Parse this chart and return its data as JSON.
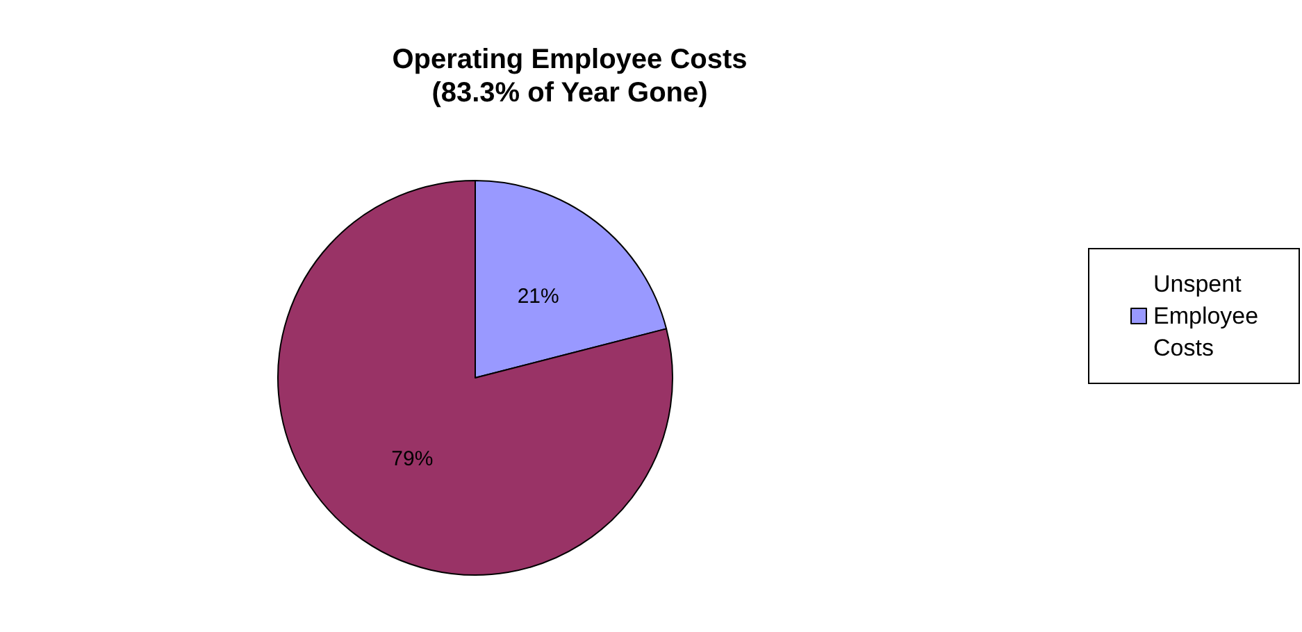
{
  "chart_data": {
    "type": "pie",
    "title": "Operating Employee Costs",
    "subtitle": "(83.3% of Year Gone)",
    "categories": [
      "Unspent Employee Costs",
      null
    ],
    "values": [
      21,
      79
    ],
    "value_labels": [
      "21%",
      "79%"
    ],
    "colors": [
      "#9999ff",
      "#993366"
    ],
    "legend": "right"
  }
}
